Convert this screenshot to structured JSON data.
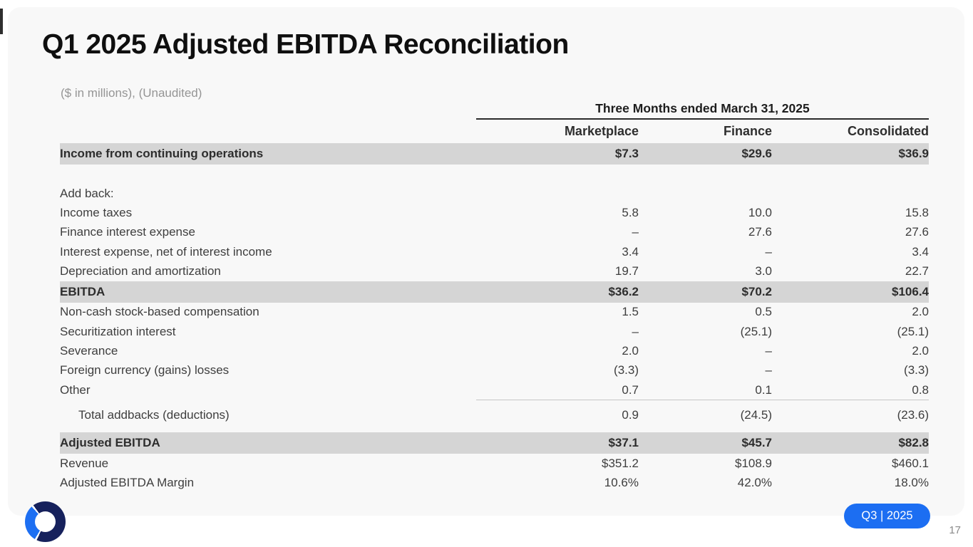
{
  "slide": {
    "title": "Q1 2025 Adjusted EBITDA Reconciliation",
    "subtitle": "($ in millions), (Unaudited)",
    "footer_badge": "Q3 | 2025",
    "page_number": "17"
  },
  "table": {
    "period_header": "Three Months ended March 31, 2025",
    "columns": [
      "Marketplace",
      "Finance",
      "Consolidated"
    ],
    "rows": [
      {
        "label": "Income from continuing operations",
        "values": [
          "$7.3",
          "$29.6",
          "$36.9"
        ],
        "style": "highlight"
      },
      {
        "label": "",
        "values": [],
        "style": "spacer"
      },
      {
        "label": "Add back:",
        "values": [
          "",
          "",
          ""
        ],
        "style": "plain"
      },
      {
        "label": "Income taxes",
        "values": [
          "5.8",
          "10.0",
          "15.8"
        ],
        "style": "plain"
      },
      {
        "label": "Finance interest expense",
        "values": [
          "–",
          "27.6",
          "27.6"
        ],
        "style": "plain"
      },
      {
        "label": "Interest expense, net of interest income",
        "values": [
          "3.4",
          "–",
          "3.4"
        ],
        "style": "plain"
      },
      {
        "label": "Depreciation and amortization",
        "values": [
          "19.7",
          "3.0",
          "22.7"
        ],
        "style": "plain"
      },
      {
        "label": "EBITDA",
        "values": [
          "$36.2",
          "$70.2",
          "$106.4"
        ],
        "style": "highlight"
      },
      {
        "label": "Non-cash stock-based compensation",
        "values": [
          "1.5",
          "0.5",
          "2.0"
        ],
        "style": "plain"
      },
      {
        "label": "Securitization interest",
        "values": [
          "–",
          "(25.1)",
          "(25.1)"
        ],
        "style": "plain"
      },
      {
        "label": "Severance",
        "values": [
          "2.0",
          "–",
          "2.0"
        ],
        "style": "plain"
      },
      {
        "label": "Foreign currency (gains) losses",
        "values": [
          "(3.3)",
          "–",
          "(3.3)"
        ],
        "style": "plain"
      },
      {
        "label": "Other",
        "values": [
          "0.7",
          "0.1",
          "0.8"
        ],
        "style": "plain",
        "rule_below": true
      },
      {
        "label": "Total addbacks (deductions)",
        "values": [
          "0.9",
          "(24.5)",
          "(23.6)"
        ],
        "style": "indent"
      },
      {
        "label": "",
        "values": [],
        "style": "spacer-small"
      },
      {
        "label": "Adjusted EBITDA",
        "values": [
          "$37.1",
          "$45.7",
          "$82.8"
        ],
        "style": "highlight"
      },
      {
        "label": "Revenue",
        "values": [
          "$351.2",
          "$108.9",
          "$460.1"
        ],
        "style": "plain"
      },
      {
        "label": "Adjusted EBITDA Margin",
        "values": [
          "10.6%",
          "42.0%",
          "18.0%"
        ],
        "style": "plain"
      }
    ]
  },
  "colors": {
    "accent_blue": "#1c6ef2",
    "row_highlight": "#d5d5d5",
    "logo_navy": "#16215c",
    "logo_blue": "#1d6ff2",
    "slide_background": "#f8f8f8"
  }
}
